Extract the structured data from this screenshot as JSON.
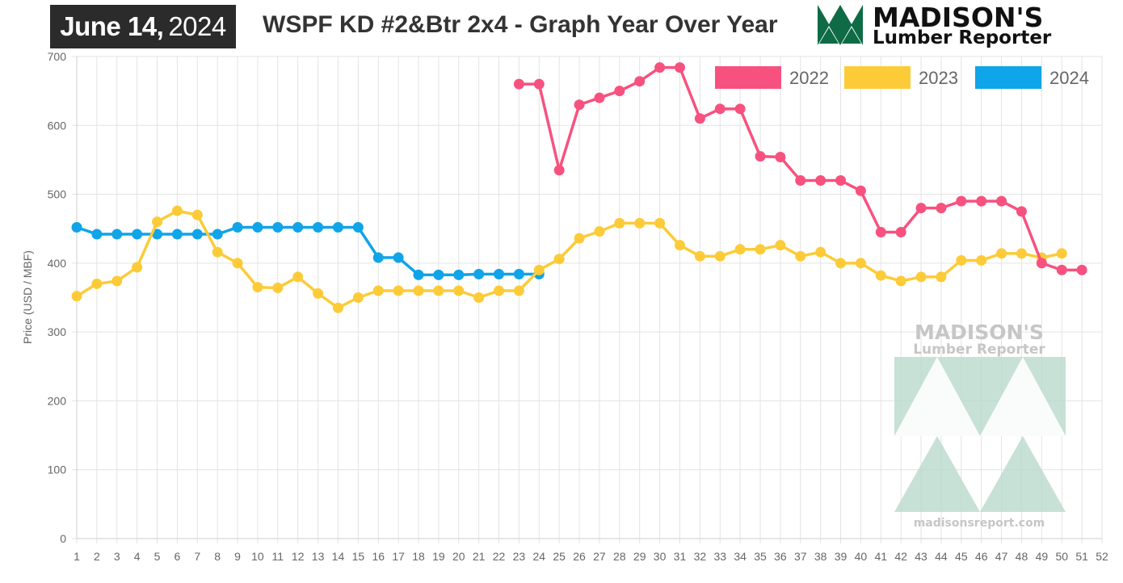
{
  "header": {
    "date_bold": "June 14,",
    "date_year": "2024",
    "title": "WSPF KD #2&Btr 2x4 - Graph Year Over Year",
    "logo_name": "MADISON'S",
    "logo_sub": "Lumber Reporter",
    "watermark_name": "MADISON'S",
    "watermark_sub": "Lumber Reporter",
    "watermark_url": "madisonsreport.com"
  },
  "colors": {
    "2022": "#f7527f",
    "2023": "#fdcb38",
    "2024": "#10a4e8",
    "logo_green": "#0e6b45",
    "watermark": "#b9d9cc"
  },
  "chart_data": {
    "type": "line",
    "ylabel": "Price (USD / MBF)",
    "xlabel": "",
    "ylim": [
      0,
      700
    ],
    "yticks": [
      0,
      100,
      200,
      300,
      400,
      500,
      600,
      700
    ],
    "x": [
      1,
      2,
      3,
      4,
      5,
      6,
      7,
      8,
      9,
      10,
      11,
      12,
      13,
      14,
      15,
      16,
      17,
      18,
      19,
      20,
      21,
      22,
      23,
      24,
      25,
      26,
      27,
      28,
      29,
      30,
      31,
      32,
      33,
      34,
      35,
      36,
      37,
      38,
      39,
      40,
      41,
      42,
      43,
      44,
      45,
      46,
      47,
      48,
      49,
      50,
      51,
      52
    ],
    "grid": true,
    "legend_position": "top-right",
    "series": [
      {
        "name": "2022",
        "x": [
          23,
          24,
          25,
          26,
          27,
          28,
          29,
          30,
          31,
          32,
          33,
          34,
          35,
          36,
          37,
          38,
          39,
          40,
          41,
          42,
          43,
          44,
          45,
          46,
          47,
          48,
          49,
          50,
          51
        ],
        "values": [
          660,
          660,
          535,
          630,
          640,
          650,
          664,
          684,
          684,
          610,
          624,
          624,
          555,
          554,
          520,
          520,
          520,
          505,
          445,
          445,
          480,
          480,
          490,
          490,
          490,
          475,
          400,
          390,
          390
        ]
      },
      {
        "name": "2023",
        "x": [
          1,
          2,
          3,
          4,
          5,
          6,
          7,
          8,
          9,
          10,
          11,
          12,
          13,
          14,
          15,
          16,
          17,
          18,
          19,
          20,
          21,
          22,
          23,
          24,
          25,
          26,
          27,
          28,
          29,
          30,
          31,
          32,
          33,
          34,
          35,
          36,
          37,
          38,
          39,
          40,
          41,
          42,
          43,
          44,
          45,
          46,
          47,
          48,
          49,
          50
        ],
        "values": [
          352,
          370,
          374,
          394,
          460,
          476,
          470,
          416,
          400,
          365,
          364,
          380,
          356,
          335,
          350,
          360,
          360,
          360,
          360,
          360,
          350,
          360,
          360,
          390,
          406,
          436,
          446,
          458,
          458,
          458,
          426,
          410,
          410,
          420,
          420,
          426,
          410,
          416,
          400,
          400,
          382,
          374,
          380,
          380,
          404,
          404,
          414,
          414,
          408,
          414
        ]
      },
      {
        "name": "2024",
        "x": [
          1,
          2,
          3,
          4,
          5,
          6,
          7,
          8,
          9,
          10,
          11,
          12,
          13,
          14,
          15,
          16,
          17,
          18,
          19,
          20,
          21,
          22,
          23,
          24
        ],
        "values": [
          452,
          442,
          442,
          442,
          442,
          442,
          442,
          442,
          452,
          452,
          452,
          452,
          452,
          452,
          452,
          408,
          408,
          383,
          383,
          383,
          384,
          384,
          384,
          384
        ]
      }
    ]
  }
}
